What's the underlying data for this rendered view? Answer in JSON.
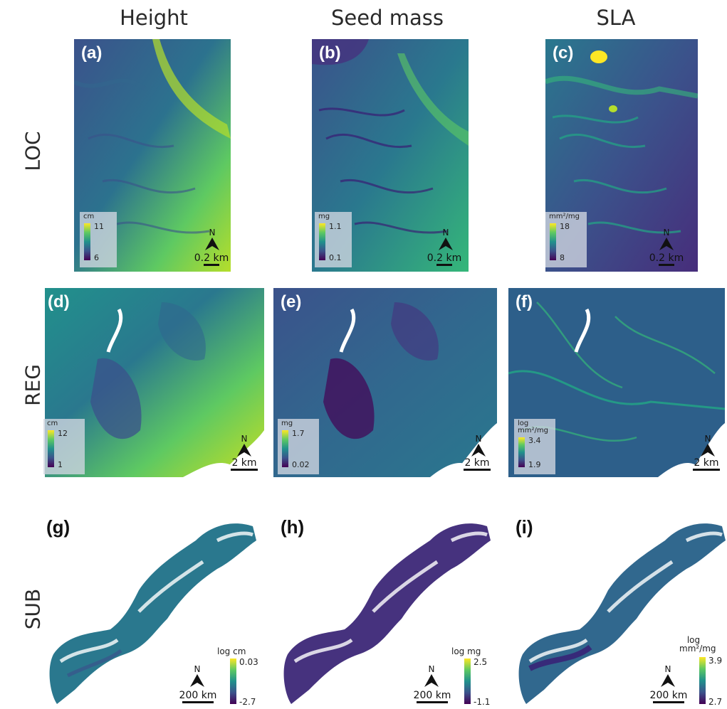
{
  "columns": [
    "Height",
    "Seed mass",
    "SLA"
  ],
  "rows": [
    "LOC",
    "REG",
    "SUB"
  ],
  "panels": {
    "a": {
      "label": "(a)",
      "unit": "cm",
      "max": "11",
      "min": "6",
      "scale": "0.2 km",
      "north": "N"
    },
    "b": {
      "label": "(b)",
      "unit": "mg",
      "max": "1.1",
      "min": "0.1",
      "scale": "0.2 km",
      "north": "N"
    },
    "c": {
      "label": "(c)",
      "unit": "mm²/mg",
      "max": "18",
      "min": "8",
      "scale": "0.2 km",
      "north": "N"
    },
    "d": {
      "label": "(d)",
      "unit": "cm",
      "max": "12",
      "min": "1",
      "scale": "2 km",
      "north": "N"
    },
    "e": {
      "label": "(e)",
      "unit": "mg",
      "max": "1.7",
      "min": "0.02",
      "scale": "2 km",
      "north": "N"
    },
    "f": {
      "label": "(f)",
      "unit": "log mm²/mg",
      "max": "3.4",
      "min": "1.9",
      "scale": "2 km",
      "north": "N"
    },
    "g": {
      "label": "(g)",
      "unit": "log cm",
      "max": "0.03",
      "min": "-2.7",
      "scale": "200 km",
      "north": "N"
    },
    "h": {
      "label": "(h)",
      "unit": "log mg",
      "max": "2.5",
      "min": "-1.1",
      "scale": "200 km",
      "north": "N"
    },
    "i": {
      "label": "(i)",
      "unit": "log mm²/mg",
      "max": "3.9",
      "min": "2.7",
      "scale": "200 km",
      "north": "N"
    }
  },
  "colormap": [
    "#440154",
    "#3b528b",
    "#21918c",
    "#5ec962",
    "#fde725"
  ]
}
